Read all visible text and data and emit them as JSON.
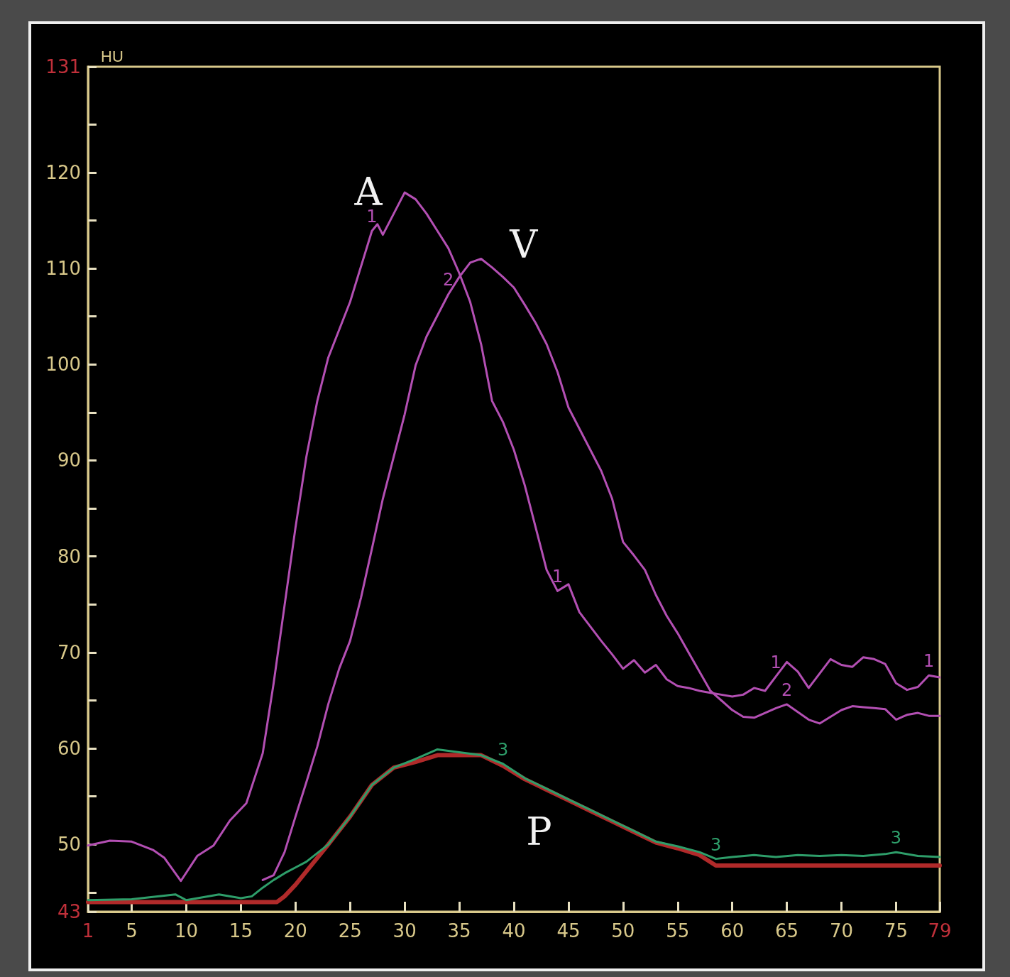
{
  "chart_data": {
    "type": "line",
    "ylabel": "HU",
    "marker": "none",
    "line_style": "solid",
    "grid": false,
    "legend": false,
    "xlim": [
      1,
      79
    ],
    "xticks": [
      1,
      5,
      10,
      15,
      20,
      25,
      30,
      35,
      40,
      45,
      50,
      55,
      60,
      65,
      70,
      75,
      79
    ],
    "ylim": [
      43,
      131
    ],
    "yticks": [
      43,
      {
        "value": 45,
        "label": null
      },
      50,
      {
        "value": 55,
        "label": null
      },
      60,
      {
        "value": 65,
        "label": null
      },
      70,
      {
        "value": 75,
        "label": null
      },
      80,
      {
        "value": 85,
        "label": null
      },
      90,
      {
        "value": 95,
        "label": null
      },
      100,
      {
        "value": 105,
        "label": null
      },
      110,
      {
        "value": 115,
        "label": null
      },
      120,
      {
        "value": 125,
        "label": null
      },
      131
    ],
    "series": [
      {
        "name": "1",
        "color": "#b34fb3",
        "x": [
          1,
          3,
          5,
          7,
          8,
          9.5,
          11,
          12.5,
          14,
          15.5,
          17,
          18,
          19,
          20,
          21,
          22,
          23,
          24,
          25,
          26,
          27,
          27.5,
          28,
          29,
          30,
          31,
          32,
          33,
          34,
          35,
          36,
          37,
          38,
          39,
          40,
          41,
          42,
          43,
          44,
          45,
          46,
          47,
          48,
          49,
          50,
          51,
          52,
          53,
          54,
          55,
          56,
          57,
          58,
          59,
          60,
          61,
          62,
          63,
          64,
          65,
          66,
          67,
          68,
          69,
          70,
          71,
          72,
          73,
          74,
          75,
          76,
          77,
          78,
          79
        ],
        "values": [
          49.9,
          50.4,
          50.3,
          49.4,
          48.6,
          46.2,
          48.8,
          49.9,
          52.5,
          54.3,
          59.5,
          66.8,
          74.9,
          83,
          90.4,
          96.2,
          100.7,
          103.6,
          106.5,
          110.2,
          113.9,
          114.6,
          113.5,
          115.7,
          117.9,
          117.2,
          115.7,
          113.9,
          112.1,
          109.5,
          106.5,
          102.1,
          96.2,
          94,
          91.1,
          87.4,
          83,
          78.6,
          76.4,
          77.1,
          74.2,
          72.7,
          71.2,
          69.8,
          68.3,
          69.2,
          67.9,
          68.7,
          67.2,
          66.5,
          66.3,
          66,
          65.8,
          65.6,
          65.4,
          65.6,
          66.3,
          66,
          67.5,
          69,
          68,
          66.3,
          67.8,
          69.3,
          68.7,
          68.5,
          69.5,
          69.3,
          68.8,
          66.8,
          66.1,
          66.4,
          67.6,
          67.4
        ]
      },
      {
        "name": "2",
        "color": "#b34fb3",
        "x": [
          17,
          18,
          19,
          20,
          21,
          22,
          23,
          24,
          25,
          26,
          27,
          28,
          29,
          30,
          31,
          32,
          33,
          34,
          35,
          36,
          37,
          38,
          39,
          40,
          41,
          42,
          43,
          44,
          45,
          46,
          47,
          48,
          49,
          50,
          51,
          52,
          53,
          54,
          55,
          56,
          57,
          58,
          59,
          60,
          61,
          62,
          63,
          64,
          65,
          66,
          67,
          68,
          69,
          70,
          71,
          72,
          73,
          74,
          75,
          76,
          77,
          78,
          79
        ],
        "values": [
          46.3,
          46.8,
          49.2,
          52.9,
          56.5,
          60.2,
          64.6,
          68.3,
          71.2,
          75.7,
          80.8,
          86,
          90.4,
          94.8,
          99.9,
          102.9,
          105.1,
          107.3,
          109.1,
          110.6,
          111,
          110.1,
          109.1,
          108,
          106.2,
          104.3,
          102.1,
          99.2,
          95.5,
          93.3,
          91.1,
          88.9,
          86,
          81.5,
          80.1,
          78.6,
          76,
          73.8,
          72,
          70,
          68,
          66,
          65,
          64,
          63.3,
          63.2,
          63.7,
          64.2,
          64.6,
          63.8,
          63,
          62.6,
          63.3,
          64,
          64.4,
          64.3,
          64.2,
          64.1,
          63,
          63.5,
          63.7,
          63.4,
          63.4
        ]
      },
      {
        "color": "#b02a2a",
        "x": [
          1,
          18.3,
          19,
          20,
          21,
          23,
          25,
          27,
          29,
          31,
          33,
          35,
          37,
          39,
          41,
          43,
          45,
          47,
          49,
          51,
          53,
          55,
          57,
          58.5,
          79
        ],
        "values": [
          44,
          44,
          44.6,
          45.8,
          47.2,
          50,
          52.9,
          56.2,
          58,
          58.6,
          59.3,
          59.3,
          59.3,
          58.2,
          56.8,
          55.7,
          54.6,
          53.5,
          52.4,
          51.3,
          50.2,
          49.6,
          48.9,
          47.8,
          47.8
        ]
      },
      {
        "name": "3",
        "color": "#2e9e6a",
        "x": [
          1,
          5,
          9,
          10,
          13,
          15,
          16,
          17,
          18,
          19,
          20,
          21,
          23,
          25,
          27,
          29,
          31,
          33,
          35,
          37,
          39,
          41,
          43,
          45,
          47,
          49,
          51,
          53,
          55,
          57,
          58.5,
          60,
          62,
          64,
          66,
          68,
          70,
          72,
          74,
          75,
          77,
          79
        ],
        "values": [
          44.2,
          44.3,
          44.8,
          44.2,
          44.8,
          44.4,
          44.6,
          45.5,
          46.3,
          47,
          47.6,
          48.2,
          50,
          52.9,
          56.2,
          58,
          58.9,
          59.9,
          59.6,
          59.3,
          58.4,
          56.9,
          55.8,
          54.7,
          53.6,
          52.5,
          51.4,
          50.3,
          49.8,
          49.2,
          48.5,
          48.7,
          48.9,
          48.7,
          48.9,
          48.8,
          48.9,
          48.8,
          49,
          49.2,
          48.8,
          48.7
        ]
      }
    ],
    "annotations": [
      "A",
      "V",
      "P"
    ]
  }
}
